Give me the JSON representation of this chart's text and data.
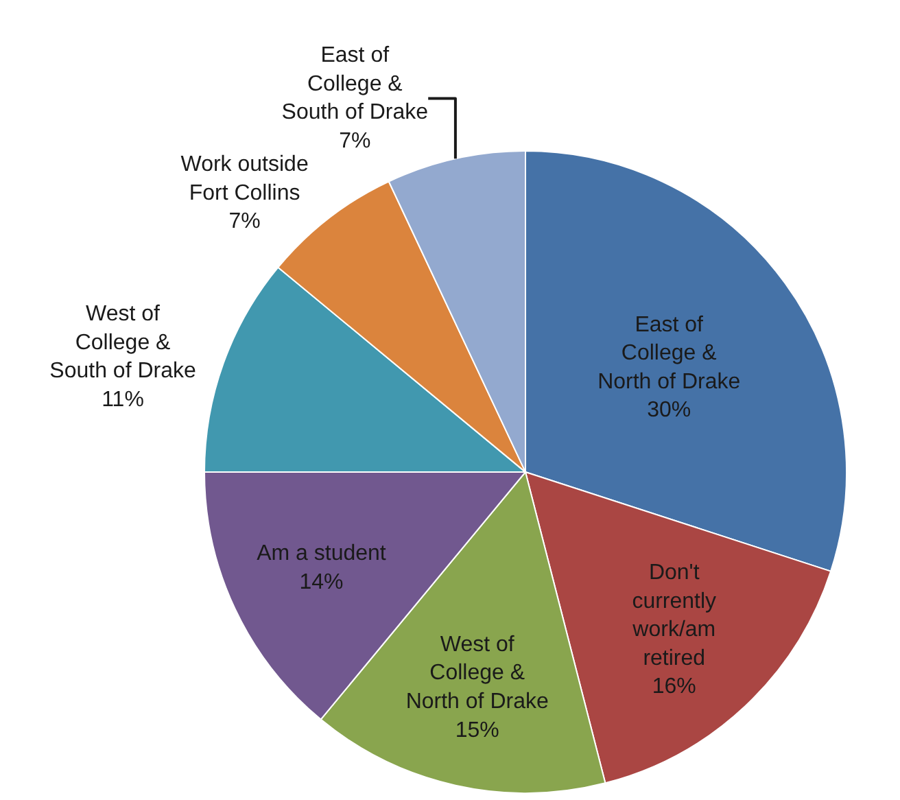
{
  "chart_data": {
    "type": "pie",
    "categories": [
      "East of College & North of Drake",
      "Don't currently work/am retired",
      "West of College & North of Drake",
      "Am a student",
      "West of College & South of Drake",
      "Work outside Fort Collins",
      "East of College & South of Drake"
    ],
    "values": [
      30,
      16,
      15,
      14,
      11,
      7,
      7
    ],
    "colors": [
      "#4572a7",
      "#aa4643",
      "#89a54e",
      "#71588f",
      "#4198af",
      "#db843d",
      "#93a9cf"
    ],
    "value_labels": [
      "30%",
      "16%",
      "15%",
      "14%",
      "11%",
      "7%",
      "7%"
    ],
    "legend": false
  }
}
